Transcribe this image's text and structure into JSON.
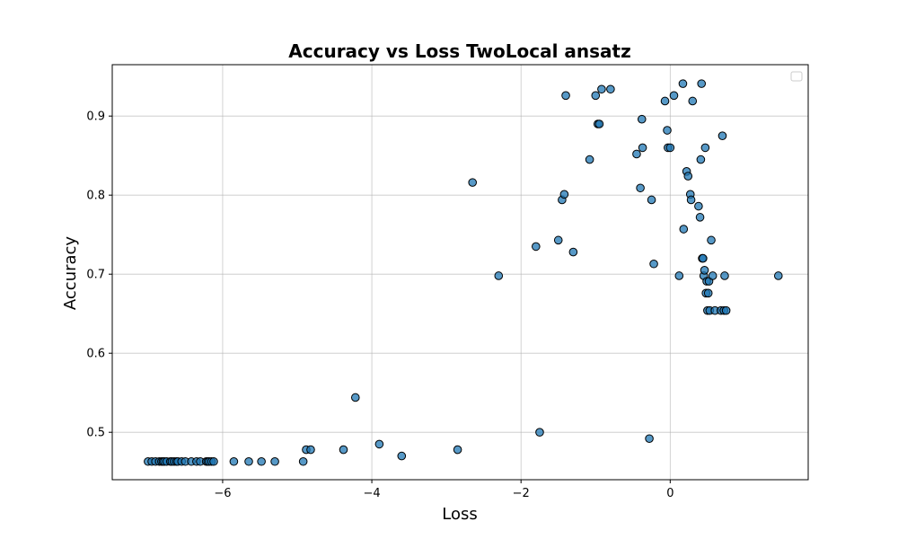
{
  "chart_data": {
    "type": "scatter",
    "title": "Accuracy vs Loss TwoLocal ansatz",
    "xlabel": "Loss",
    "ylabel": "Accuracy",
    "xlim": [
      -7.48,
      1.85
    ],
    "ylim": [
      0.44,
      0.965
    ],
    "xticks": [
      -6,
      -4,
      -2,
      0
    ],
    "yticks": [
      0.5,
      0.6,
      0.7,
      0.8,
      0.9
    ],
    "grid": true,
    "legend": "top-right (empty)",
    "marker_color": "#1f77b4",
    "series": [
      {
        "x": [
          -7.0,
          -6.95,
          -6.9,
          -6.85,
          -6.82,
          -6.8,
          -6.78,
          -6.75,
          -6.7,
          -6.68,
          -6.65,
          -6.62,
          -6.6,
          -6.55,
          -6.5,
          -6.42,
          -6.35,
          -6.3,
          -6.22,
          -6.2,
          -6.18,
          -6.15,
          -6.12,
          -5.85,
          -5.65,
          -5.48,
          -5.3,
          -4.92,
          -4.88,
          -4.82,
          -4.38,
          -3.9,
          -3.6,
          -2.85,
          -4.22,
          -1.75,
          -0.28,
          -2.65,
          -2.3,
          -1.8,
          -1.5,
          -1.45,
          -1.42,
          -1.3,
          -1.4,
          -1.08,
          -1.0,
          -0.97,
          -0.92,
          -0.95,
          -0.8,
          -0.45,
          -0.4,
          -0.38,
          -0.37,
          -0.25,
          -0.22,
          -0.07,
          -0.03,
          -0.04,
          0.0,
          0.05,
          0.12,
          0.17,
          0.18,
          0.22,
          0.24,
          0.27,
          0.28,
          0.3,
          0.38,
          0.4,
          0.41,
          0.42,
          0.43,
          0.44,
          0.45,
          0.46,
          0.47,
          0.48,
          0.49,
          0.5,
          0.51,
          0.52,
          0.53,
          0.55,
          0.57,
          0.6,
          0.68,
          0.7,
          0.72,
          0.73,
          0.75,
          1.45
        ],
        "y": [
          0.463,
          0.463,
          0.463,
          0.463,
          0.463,
          0.463,
          0.463,
          0.463,
          0.463,
          0.463,
          0.463,
          0.463,
          0.463,
          0.463,
          0.463,
          0.463,
          0.463,
          0.463,
          0.463,
          0.463,
          0.463,
          0.463,
          0.463,
          0.463,
          0.463,
          0.463,
          0.463,
          0.463,
          0.478,
          0.478,
          0.478,
          0.485,
          0.47,
          0.478,
          0.544,
          0.5,
          0.492,
          0.816,
          0.698,
          0.735,
          0.743,
          0.794,
          0.801,
          0.728,
          0.926,
          0.845,
          0.926,
          0.89,
          0.934,
          0.89,
          0.934,
          0.852,
          0.809,
          0.896,
          0.86,
          0.794,
          0.713,
          0.919,
          0.86,
          0.882,
          0.86,
          0.926,
          0.698,
          0.941,
          0.757,
          0.83,
          0.824,
          0.801,
          0.794,
          0.919,
          0.786,
          0.772,
          0.845,
          0.941,
          0.72,
          0.72,
          0.698,
          0.705,
          0.86,
          0.676,
          0.691,
          0.654,
          0.676,
          0.691,
          0.654,
          0.743,
          0.698,
          0.654,
          0.654,
          0.875,
          0.654,
          0.698,
          0.654,
          0.698
        ]
      }
    ]
  }
}
